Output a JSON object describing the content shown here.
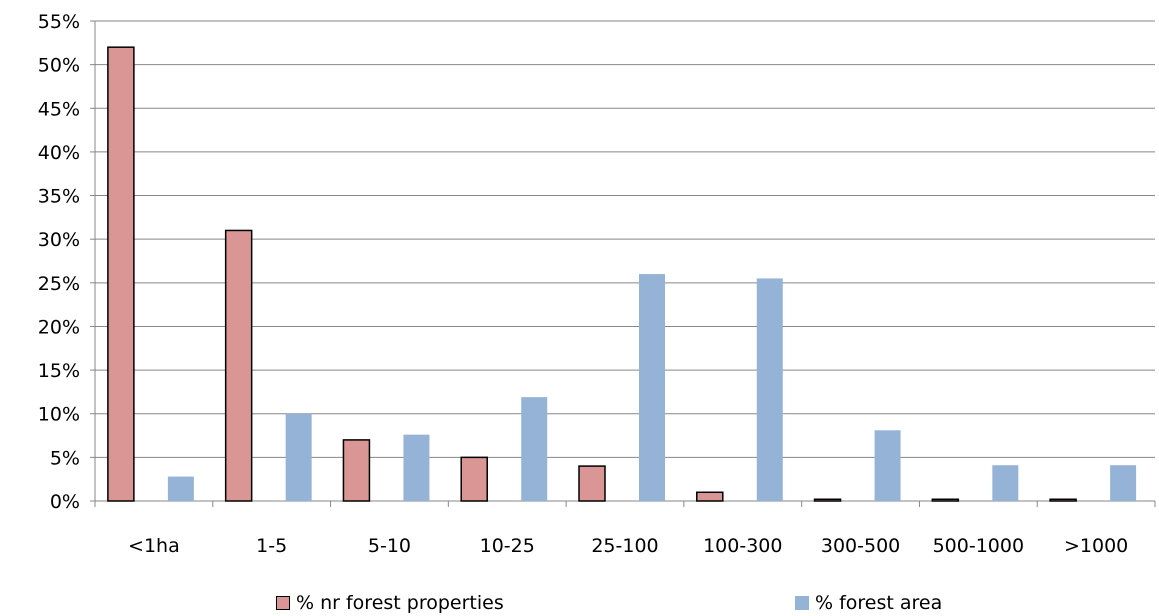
{
  "chart_data": {
    "type": "bar",
    "categories": [
      "<1ha",
      "1-5",
      "5-10",
      "10-25",
      "25-100",
      "100-300",
      "300-500",
      "500-1000",
      ">1000"
    ],
    "series": [
      {
        "name": "% nr forest properties",
        "values": [
          52,
          31,
          7,
          5,
          4,
          1,
          0.2,
          0.2,
          0.2
        ],
        "color": "#d99694",
        "border": "#000000"
      },
      {
        "name": "% forest area",
        "values": [
          2.8,
          10,
          7.6,
          11.9,
          26,
          25.5,
          8.1,
          4.1,
          4.1
        ],
        "color": "#95b3d7",
        "border": "none"
      }
    ],
    "y_ticks": [
      "0%",
      "5%",
      "10%",
      "15%",
      "20%",
      "25%",
      "30%",
      "35%",
      "40%",
      "45%",
      "50%",
      "55%"
    ],
    "ylim": [
      0,
      55
    ],
    "grid": true,
    "legend_position": "bottom"
  }
}
